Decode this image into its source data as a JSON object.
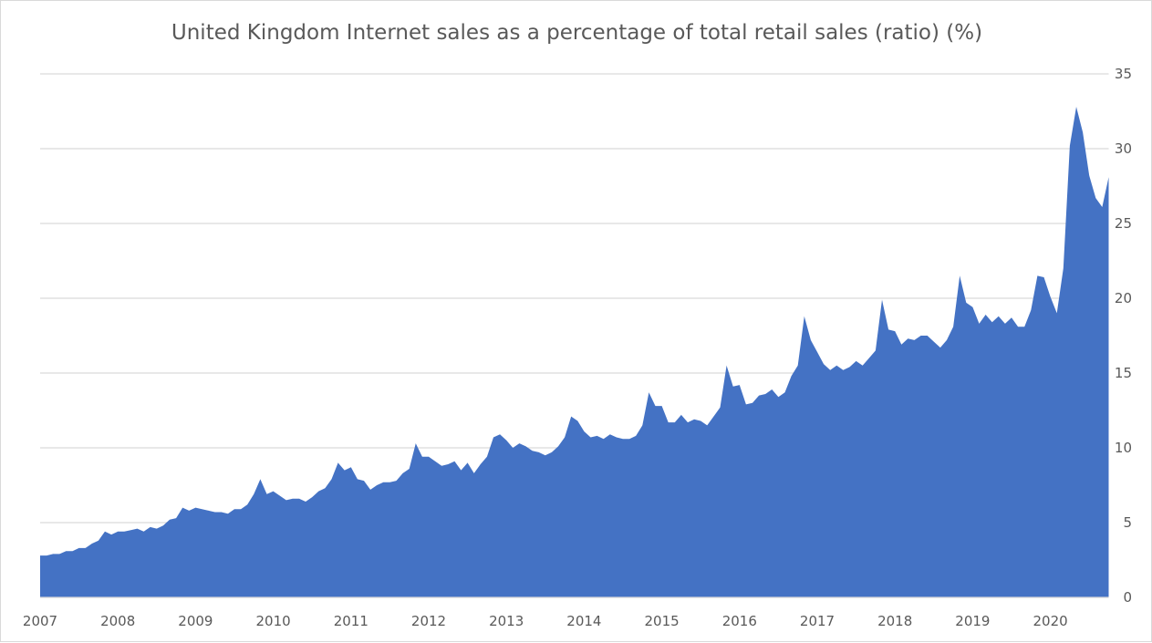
{
  "chart_data": {
    "type": "area",
    "title": "United Kingdom Internet sales as a percentage of total retail sales (ratio) (%)",
    "xlabel": "",
    "ylabel": "",
    "frequency": "monthly",
    "x_start": "2007-01",
    "x_end": "2020-10",
    "x_tick_labels": [
      "2007",
      "2008",
      "2009",
      "2010",
      "2011",
      "2012",
      "2013",
      "2014",
      "2015",
      "2016",
      "2017",
      "2018",
      "2019",
      "2020"
    ],
    "y_tick_labels": [
      "0",
      "5",
      "10",
      "15",
      "20",
      "25",
      "30",
      "35"
    ],
    "ylim": [
      0,
      35
    ],
    "y_axis_side": "right",
    "grid": true,
    "legend": "none",
    "color": "#4472C4",
    "values": [
      2.8,
      2.8,
      2.9,
      2.9,
      3.1,
      3.1,
      3.3,
      3.3,
      3.6,
      3.8,
      4.4,
      4.2,
      4.4,
      4.4,
      4.5,
      4.6,
      4.4,
      4.7,
      4.6,
      4.8,
      5.2,
      5.3,
      6.0,
      5.8,
      6.0,
      5.9,
      5.8,
      5.7,
      5.7,
      5.6,
      5.9,
      5.9,
      6.2,
      6.9,
      7.9,
      6.9,
      7.1,
      6.8,
      6.5,
      6.6,
      6.6,
      6.4,
      6.7,
      7.1,
      7.3,
      7.9,
      9.0,
      8.5,
      8.7,
      7.9,
      7.8,
      7.2,
      7.5,
      7.7,
      7.7,
      7.8,
      8.3,
      8.6,
      10.3,
      9.4,
      9.4,
      9.1,
      8.8,
      8.9,
      9.1,
      8.5,
      9.0,
      8.3,
      8.9,
      9.4,
      10.7,
      10.9,
      10.5,
      10.0,
      10.3,
      10.1,
      9.8,
      9.7,
      9.5,
      9.7,
      10.1,
      10.7,
      12.1,
      11.8,
      11.1,
      10.7,
      10.8,
      10.6,
      10.9,
      10.7,
      10.6,
      10.6,
      10.8,
      11.5,
      13.7,
      12.8,
      12.8,
      11.7,
      11.7,
      12.2,
      11.7,
      11.9,
      11.8,
      11.5,
      12.1,
      12.7,
      15.5,
      14.1,
      14.2,
      12.9,
      13.0,
      13.5,
      13.6,
      13.9,
      13.4,
      13.7,
      14.8,
      15.5,
      18.8,
      17.2,
      16.4,
      15.6,
      15.2,
      15.5,
      15.2,
      15.4,
      15.8,
      15.5,
      16.0,
      16.5,
      19.9,
      17.9,
      17.8,
      16.9,
      17.3,
      17.2,
      17.5,
      17.5,
      17.1,
      16.7,
      17.2,
      18.1,
      21.5,
      19.7,
      19.4,
      18.3,
      18.9,
      18.4,
      18.8,
      18.3,
      18.7,
      18.1,
      18.1,
      19.2,
      21.5,
      21.4,
      20.1,
      19.0,
      22.0,
      30.2,
      32.8,
      31.1,
      28.2,
      26.7,
      26.1,
      28.1
    ]
  }
}
